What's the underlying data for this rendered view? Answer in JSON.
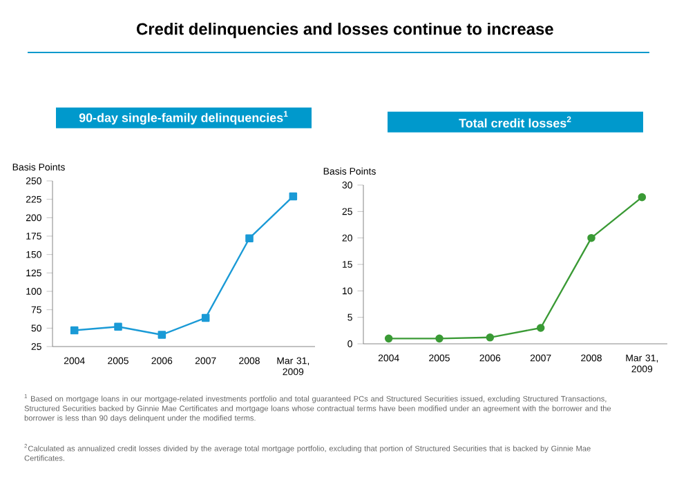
{
  "chart_data": [
    {
      "type": "other",
      "title": "Credit delinquencies and losses continue to increase",
      "annotations": [
        "$^{1}$ Based on mortgage loans in our mortgage-related investments portfolio and total guaranteed PCs and Structured Securities issued, excluding Structured Transactions, Structured Securities backed by Ginnie Mae Certificates and mortgage loans whose contractual terms have been modified under an agreement with the borrower and the borrower is less than 90 days delinquent under the modified terms.",
        "$^{2}$Calculated as annualized credit losses divided by the average total mortgage portfolio, excluding that portion of Structured Securities that is backed by Ginnie Mae Certificates."
      ]
    },
    {
      "type": "line",
      "title": "90-day single-family delinquencies$^{1}$",
      "ylabel": "Basis Points",
      "categories": [
        "2004",
        "2005",
        "2006",
        "2007",
        "2008",
        "Mar 31, 2009"
      ],
      "ylim": [
        25,
        250
      ],
      "yticks": [
        25,
        50,
        75,
        100,
        125,
        150,
        175,
        200,
        225,
        250
      ],
      "marker": "square",
      "series": [
        {
          "color": "#1a9ad6",
          "values": [
            47,
            52,
            41,
            64,
            172,
            229
          ]
        }
      ]
    },
    {
      "type": "line",
      "title": "Total credit losses$^{2}$",
      "ylabel": "Basis Points",
      "categories": [
        "2004",
        "2005",
        "2006",
        "2007",
        "2008",
        "Mar 31, 2009"
      ],
      "ylim": [
        0,
        30
      ],
      "yticks": [
        0,
        5,
        10,
        15,
        20,
        25,
        30
      ],
      "marker": "circle",
      "series": [
        {
          "color": "#3a9a35",
          "values": [
            1,
            1,
            1.2,
            3,
            20,
            27.7
          ]
        }
      ]
    }
  ]
}
